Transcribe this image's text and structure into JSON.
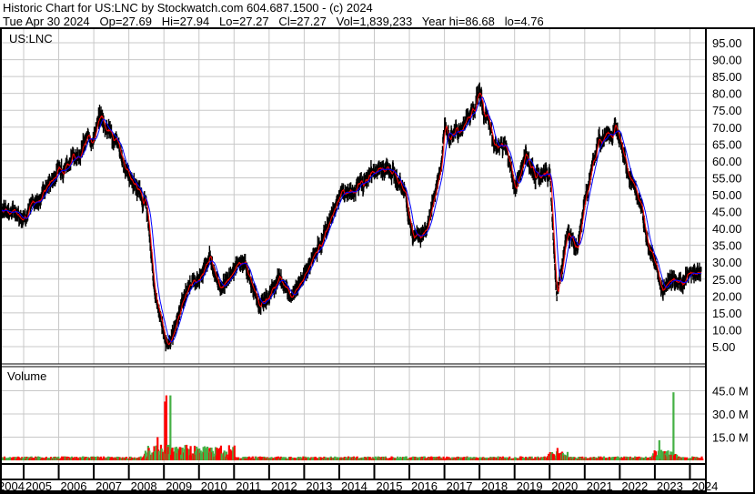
{
  "header": {
    "title": "Historic Chart for US:LNC by Stockwatch.com 604.687.1500 - (c) 2024",
    "quote": "Tue Apr 30 2024   Op=27.69   Hi=27.94   Lo=27.27   Cl=27.27   Vol=1,839,233   Year hi=86.68   lo=4.76"
  },
  "colors": {
    "price": "#000000",
    "ma_short": "#ff0000",
    "ma_long": "#0000ff",
    "vol_up": "#44b044",
    "vol_down": "#ff0000",
    "grid": "#c8c8c8"
  },
  "chart_data": [
    {
      "type": "line",
      "symbol": "US:LNC",
      "ylim": [
        0,
        100
      ],
      "grid": true,
      "yticks": [
        "95.00",
        "90.00",
        "85.00",
        "80.00",
        "75.00",
        "70.00",
        "65.00",
        "60.00",
        "55.00",
        "50.00",
        "45.00",
        "40.00",
        "35.00",
        "30.00",
        "25.00",
        "20.00",
        "15.00",
        "10.00",
        "5.00"
      ],
      "ytick_values": [
        95,
        90,
        85,
        80,
        75,
        70,
        65,
        60,
        55,
        50,
        45,
        40,
        35,
        30,
        25,
        20,
        15,
        10,
        5
      ],
      "xticks": [
        "2004",
        "2005",
        "2006",
        "2007",
        "2008",
        "2009",
        "2010",
        "2011",
        "2012",
        "2013",
        "2014",
        "2015",
        "2016",
        "2017",
        "2018",
        "2019",
        "2020",
        "2021",
        "2022",
        "2023",
        "2024"
      ],
      "x": [
        2004.35,
        2004.7,
        2005.0,
        2005.5,
        2006.0,
        2006.5,
        2007.0,
        2007.2,
        2007.6,
        2008.0,
        2008.5,
        2008.75,
        2009.1,
        2009.3,
        2009.7,
        2010.0,
        2010.3,
        2010.6,
        2011.0,
        2011.3,
        2011.7,
        2012.0,
        2012.3,
        2012.6,
        2013.0,
        2013.5,
        2014.0,
        2014.5,
        2015.0,
        2015.5,
        2015.9,
        2016.1,
        2016.5,
        2016.9,
        2017.0,
        2017.5,
        2018.0,
        2018.3,
        2018.8,
        2019.0,
        2019.3,
        2019.6,
        2020.0,
        2020.2,
        2020.5,
        2020.8,
        2021.0,
        2021.4,
        2021.7,
        2022.0,
        2022.3,
        2022.6,
        2022.8,
        2023.0,
        2023.2,
        2023.5,
        2023.8,
        2024.0,
        2024.33
      ],
      "values": [
        46,
        45,
        44,
        50,
        58,
        62,
        68,
        73,
        66,
        56,
        47,
        20,
        5,
        10,
        24,
        25,
        32,
        22,
        28,
        30,
        17,
        20,
        26,
        20,
        26,
        36,
        50,
        52,
        57,
        58,
        50,
        37,
        40,
        58,
        67,
        70,
        80,
        68,
        62,
        53,
        62,
        55,
        57,
        20,
        38,
        34,
        48,
        66,
        68,
        70,
        55,
        47,
        35,
        30,
        22,
        25,
        24,
        27,
        27.27
      ]
    },
    {
      "type": "bar",
      "title": "Volume",
      "ylim": [
        0,
        60
      ],
      "yticks": [
        "45.0 M",
        "30.0 M",
        "15.0 M"
      ],
      "ytick_values": [
        45,
        30,
        15
      ],
      "unit": "M",
      "spikes_x": [
        2008.8,
        2009.0,
        2009.05,
        2009.15,
        2020.2,
        2023.1,
        2023.5
      ],
      "spikes_values": [
        15,
        38,
        42,
        42,
        8,
        13,
        44
      ]
    }
  ]
}
